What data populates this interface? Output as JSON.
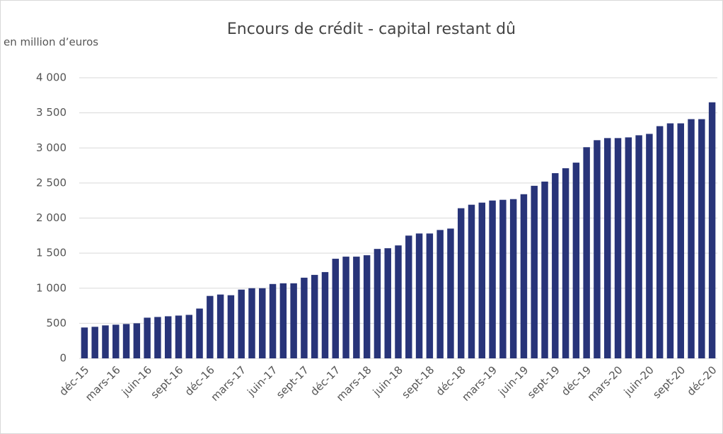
{
  "chart_data": {
    "type": "bar",
    "title": "Encours de crédit - capital restant dû",
    "y_label": "en million d’euros",
    "categories": [
      "déc-15",
      null,
      null,
      "mars-16",
      null,
      null,
      "juin-16",
      null,
      null,
      "sept-16",
      null,
      null,
      "déc-16",
      null,
      null,
      "mars-17",
      null,
      null,
      "juin-17",
      null,
      null,
      "sept-17",
      null,
      null,
      "déc-17",
      null,
      null,
      "mars-18",
      null,
      null,
      "juin-18",
      null,
      null,
      "sept-18",
      null,
      null,
      "déc-18",
      null,
      null,
      "mars-19",
      null,
      null,
      "juin-19",
      null,
      null,
      "sept-19",
      null,
      null,
      "déc-19",
      null,
      null,
      "mars-20",
      null,
      null,
      "juin-20",
      null,
      null,
      "sept-20",
      null,
      null,
      "déc-20"
    ],
    "values": [
      440,
      450,
      470,
      480,
      490,
      500,
      580,
      590,
      600,
      610,
      620,
      710,
      890,
      910,
      900,
      980,
      1000,
      1000,
      1060,
      1070,
      1070,
      1150,
      1190,
      1230,
      1420,
      1450,
      1450,
      1470,
      1560,
      1570,
      1610,
      1750,
      1780,
      1780,
      1830,
      1850,
      2140,
      2190,
      2220,
      2250,
      2260,
      2270,
      2340,
      2460,
      2520,
      2640,
      2710,
      2790,
      3010,
      3110,
      3140,
      3140,
      3150,
      3180,
      3200,
      3310,
      3350,
      3350,
      3410,
      3410,
      3650
    ],
    "color": "#283479",
    "ylim": [
      0,
      4000
    ],
    "yticks": [
      0,
      500,
      {
        "value": 1000,
        "label": "1 000"
      },
      {
        "value": 1500,
        "label": "1 500"
      },
      {
        "value": 2000,
        "label": "2 000"
      },
      {
        "value": 2500,
        "label": "2 500"
      },
      {
        "value": 3000,
        "label": "3 000"
      },
      {
        "value": 3500,
        "label": "3 500"
      },
      {
        "value": 4000,
        "label": "4 000"
      }
    ],
    "grid": true
  }
}
